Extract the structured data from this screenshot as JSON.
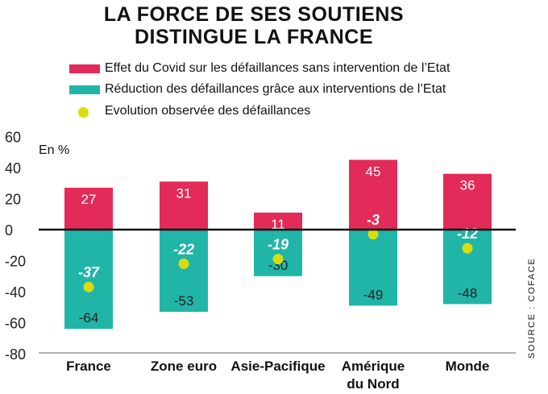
{
  "title_line1": "LA FORCE DE SES SOUTIENS",
  "title_line2": "DISTINGUE LA FRANCE",
  "unit": "En %",
  "source": "SOURCE : COFACE",
  "legend": [
    {
      "label": "Effet du Covid sur les défaillances sans intervention de l’Etat",
      "color": "#e22b58",
      "kind": "bar"
    },
    {
      "label": "Réduction des défaillances grâce aux interventions de l’Etat",
      "color": "#21b5a8",
      "kind": "bar"
    },
    {
      "label": "Evolution observée des défaillances",
      "color": "#d9dd0f",
      "kind": "dot"
    }
  ],
  "chart_data": {
    "type": "bar",
    "categories": [
      [
        "France"
      ],
      [
        "Zone euro"
      ],
      [
        "Asie-Pacifique"
      ],
      [
        "Amérique",
        "du Nord"
      ],
      [
        "Monde"
      ]
    ],
    "series": [
      {
        "name": "Effet du Covid sur les défaillances sans intervention de l’Etat",
        "values": [
          27,
          31,
          11,
          45,
          36
        ],
        "color": "#e22b58"
      },
      {
        "name": "Réduction des défaillances grâce aux interventions de l’Etat",
        "values": [
          -64,
          -53,
          -30,
          -49,
          -48
        ],
        "color": "#21b5a8"
      },
      {
        "name": "Evolution observée des défaillances",
        "values": [
          -37,
          -22,
          -19,
          -3,
          -12
        ],
        "color": "#d9dd0f",
        "kind": "point"
      }
    ],
    "yticks": [
      60,
      40,
      20,
      0,
      -20,
      -40,
      -60,
      -80
    ],
    "ylim": [
      -80,
      60
    ],
    "grid": false
  }
}
